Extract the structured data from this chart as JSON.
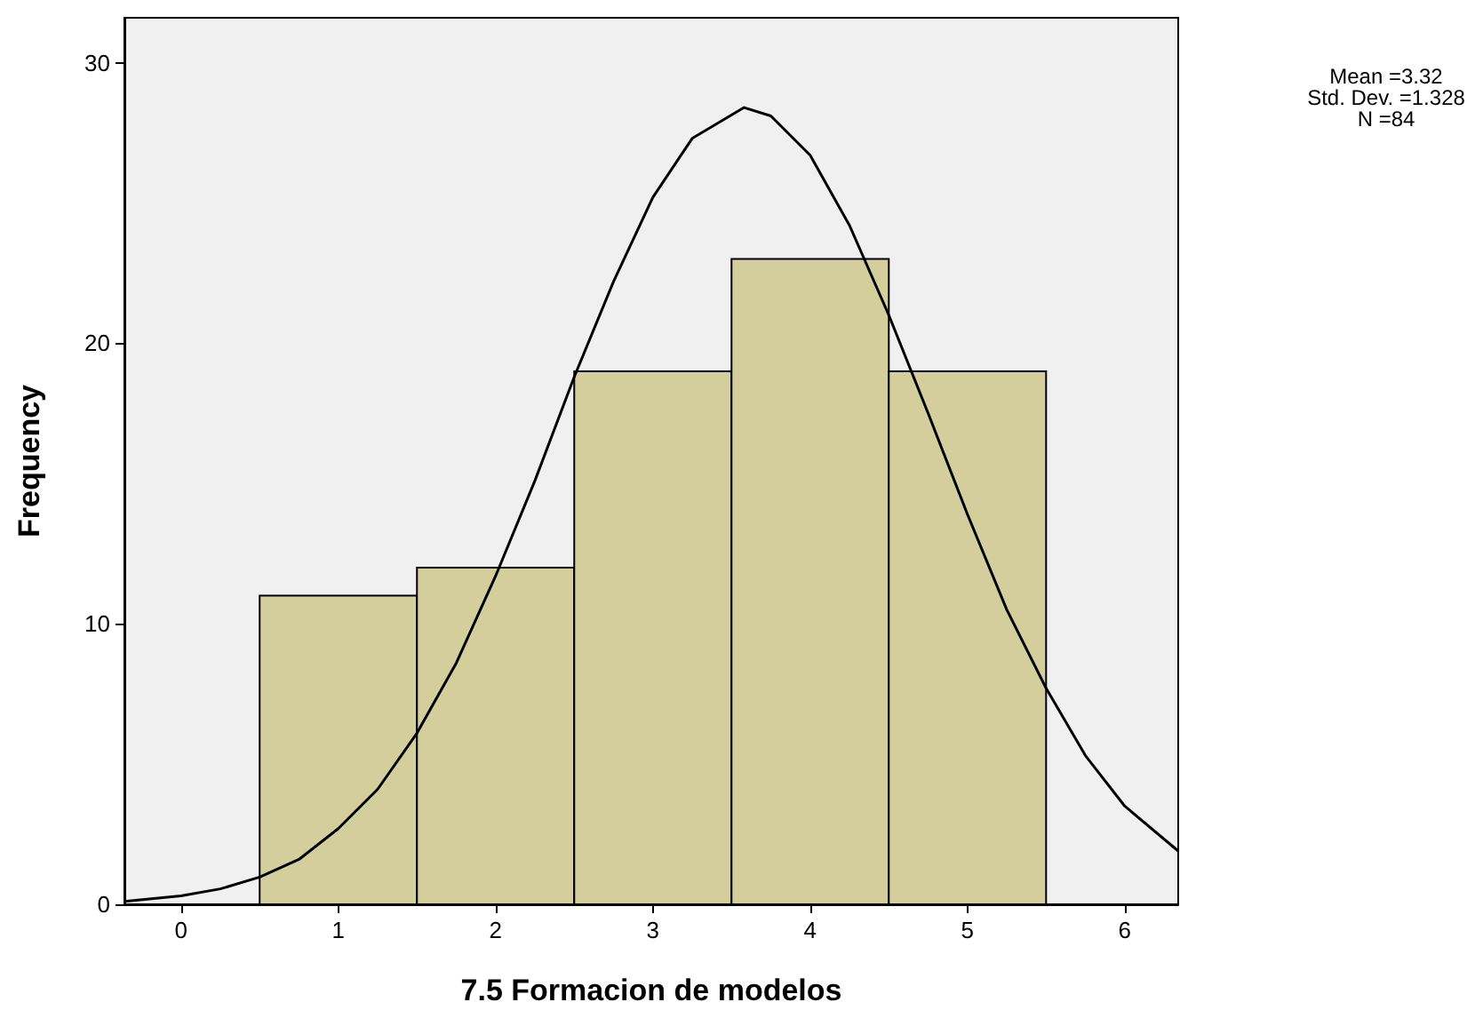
{
  "chart_data": {
    "type": "histogram",
    "xlabel": "7.5 Formacion de modelos",
    "ylabel": "Frequency",
    "annotations": [
      "Mean =3.32",
      "Std. Dev. =1.328",
      "N =84"
    ],
    "xlim": [
      -0.36,
      6.34
    ],
    "xticks": [
      0,
      1,
      2,
      3,
      4,
      5,
      6
    ],
    "ylim": [
      0,
      31.6
    ],
    "yticks": [
      0,
      10,
      20,
      30
    ],
    "series": [
      {
        "type": "histogram",
        "color": "#d3ce9c",
        "bins": [
          0.5,
          1.5,
          2.5,
          3.5,
          4.5,
          5.5
        ],
        "values": [
          11,
          12,
          19,
          23,
          19
        ]
      },
      {
        "type": "line",
        "color": "#000000",
        "x": [
          -0.36,
          0,
          0.25,
          0.5,
          0.75,
          1,
          1.25,
          1.5,
          1.75,
          2,
          2.25,
          2.5,
          2.75,
          3,
          3.25,
          3.58,
          3.75,
          4,
          4.25,
          4.5,
          4.75,
          5,
          5.25,
          5.5,
          5.75,
          6,
          6.34
        ],
        "values": [
          0.1,
          0.3,
          0.55,
          0.97,
          1.6,
          2.7,
          4.1,
          6.1,
          8.6,
          11.7,
          15.1,
          18.8,
          22.2,
          25.2,
          27.3,
          28.4,
          28.1,
          26.7,
          24.2,
          21,
          17.5,
          13.9,
          10.5,
          7.7,
          5.3,
          3.5,
          1.9
        ]
      }
    ]
  }
}
